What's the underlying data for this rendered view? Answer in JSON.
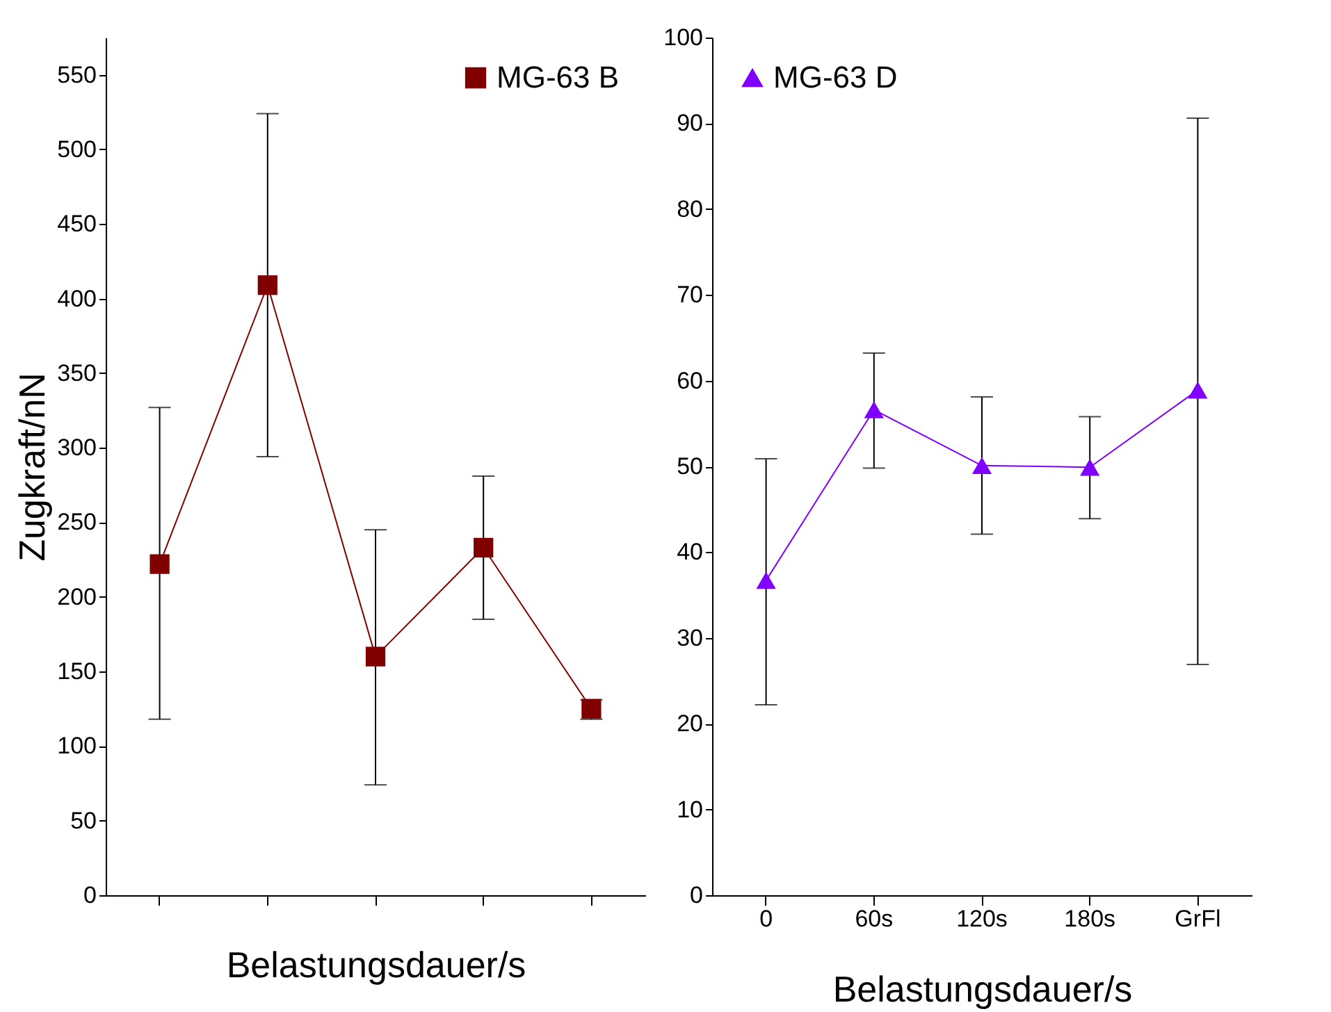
{
  "chart_data": [
    {
      "type": "line",
      "categories": [
        null,
        null,
        null,
        null,
        null
      ],
      "xlabel": "Belastungsdauer/s",
      "ylabel": "Zugkraft/nN",
      "ylim": [
        0,
        575
      ],
      "yticks": [
        0,
        50,
        100,
        150,
        200,
        250,
        300,
        350,
        400,
        450,
        500,
        550
      ],
      "tick_labels": "y",
      "legend": "top right",
      "marker": "square",
      "series": [
        {
          "name": "MG-63 B",
          "color": "#800000",
          "values": [
            222,
            409,
            160,
            233,
            125
          ],
          "errors": [
            [
              118,
              327
            ],
            [
              294,
              524
            ],
            [
              74,
              245
            ],
            [
              185,
              281
            ],
            [
              118,
              131
            ]
          ]
        }
      ]
    },
    {
      "type": "line",
      "categories": [
        "0",
        "60s",
        "120s",
        "180s",
        "GrFl"
      ],
      "xlabel": "Belastungsdauer/s",
      "ylim": [
        0,
        100
      ],
      "yticks": [
        0,
        10,
        20,
        30,
        40,
        50,
        60,
        70,
        80,
        90,
        100
      ],
      "legend": "top left",
      "marker": "triangle",
      "series": [
        {
          "name": "MG-63 D",
          "color": "#8000ff",
          "values": [
            36.7,
            56.6,
            50.1,
            49.9,
            58.9
          ],
          "errors": [
            [
              22.2,
              50.9
            ],
            [
              49.8,
              63.2
            ],
            [
              42.1,
              58.1
            ],
            [
              43.9,
              55.8
            ],
            [
              26.9,
              90.6
            ]
          ]
        }
      ]
    }
  ]
}
